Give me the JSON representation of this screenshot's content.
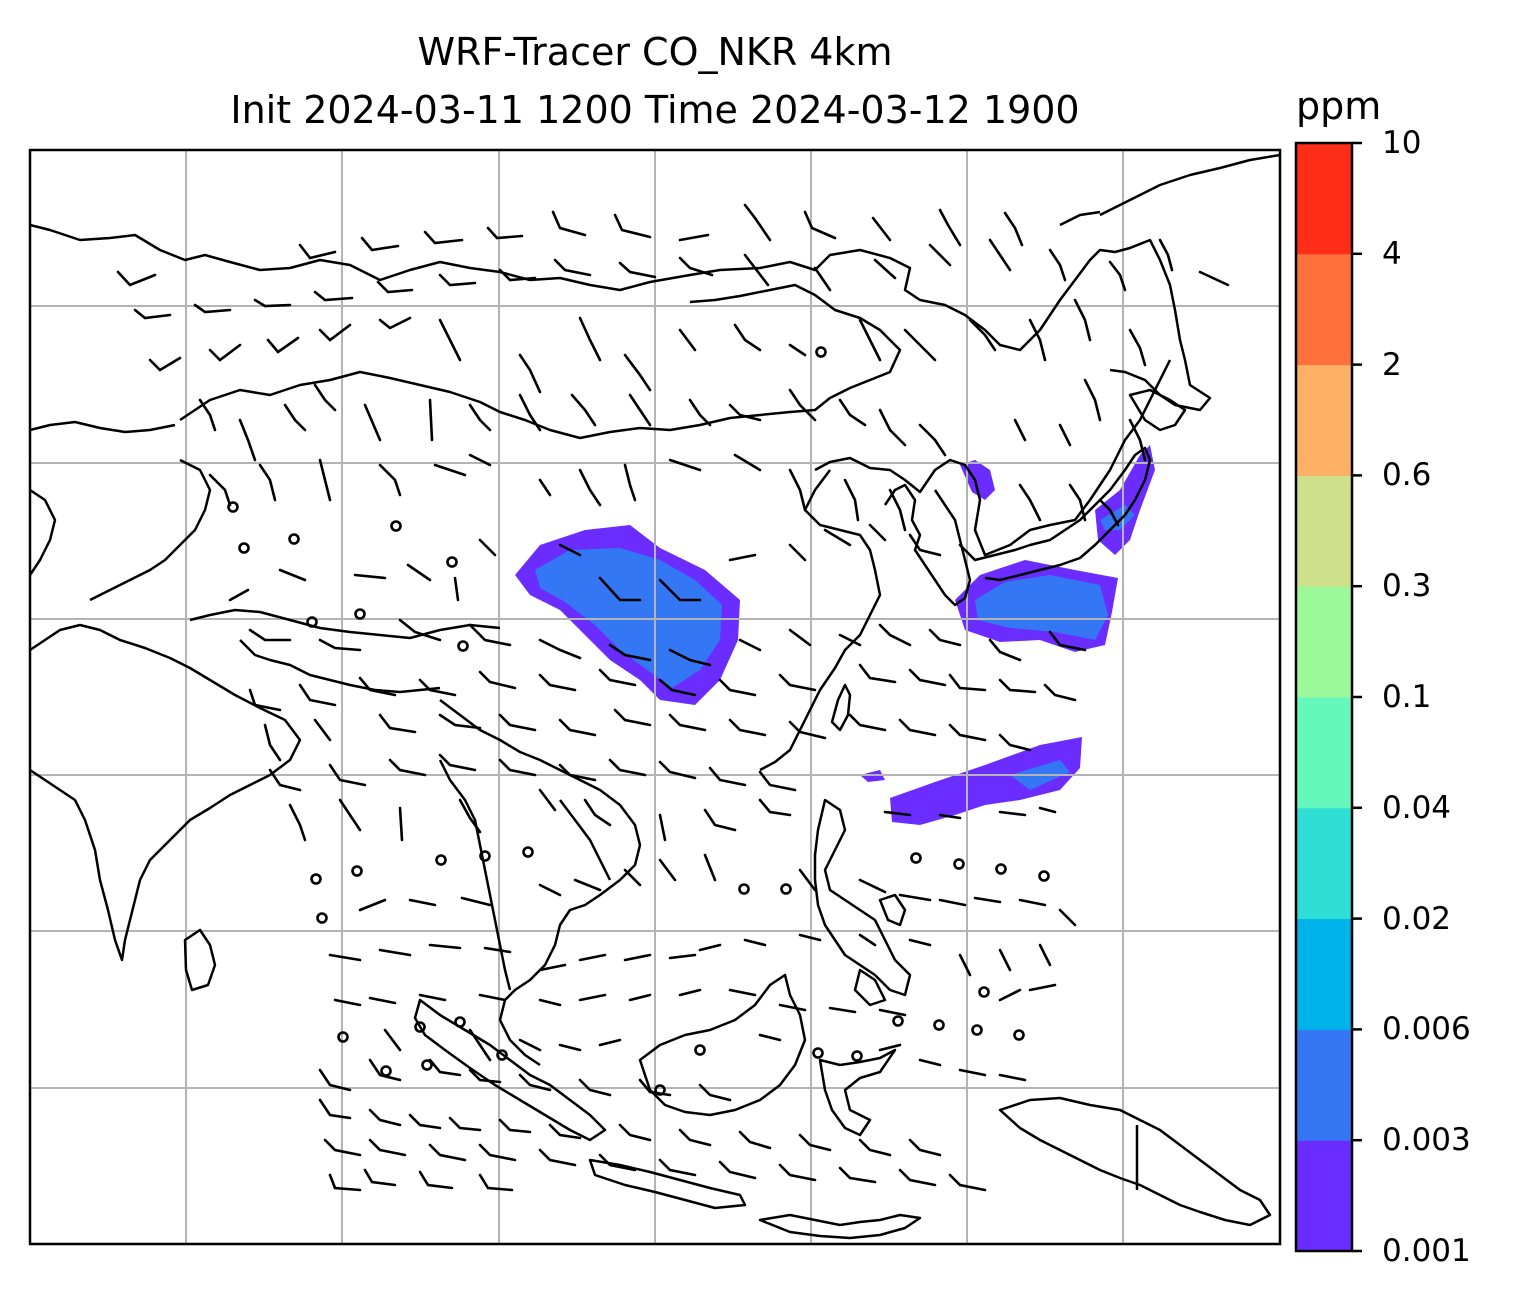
{
  "title": {
    "line1": "WRF-Tracer CO_NKR 4km",
    "line2": "Init 2024-03-11 1200 Time 2024-03-12 1900"
  },
  "colorbar": {
    "unit": "ppm",
    "ticks": [
      "0.001",
      "0.003",
      "0.006",
      "0.02",
      "0.04",
      "0.1",
      "0.3",
      "0.6",
      "2",
      "4",
      "10"
    ],
    "colors": [
      "#6a2cff",
      "#3477f5",
      "#00b2ea",
      "#2fdfd6",
      "#64f8bd",
      "#9cf99a",
      "#cfe08a",
      "#fdb066",
      "#ff703d",
      "#fe2e18"
    ]
  },
  "map": {
    "projection": "lat-lon",
    "gridlines": true,
    "gridline_color": "#b4b4b4",
    "coastline_color": "#000000",
    "wind_barbs": true,
    "plumes": [
      {
        "region": "central-china",
        "level": "0.001-0.006"
      },
      {
        "region": "east-china-sea-korea",
        "level": "0.001-0.006"
      },
      {
        "region": "japan",
        "level": "0.001-0.006"
      },
      {
        "region": "south-of-taiwan",
        "level": "0.001-0.003"
      }
    ]
  }
}
